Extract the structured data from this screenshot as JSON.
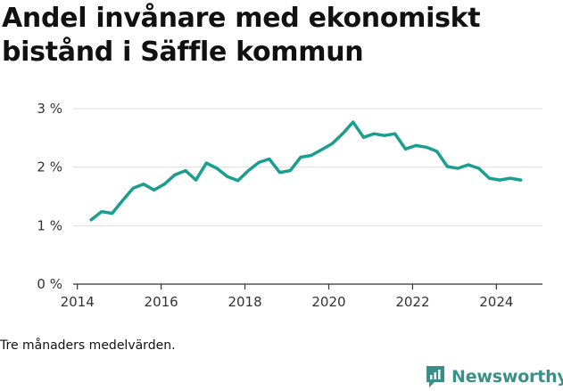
{
  "title": "Andel invånare med ekonomiskt bistånd i Säffle kommun",
  "note": "Tre månaders medelvärden.",
  "brand": {
    "name": "Newsworthy"
  },
  "colors": {
    "line": "#1a9e8f",
    "grid": "#dddddd",
    "axis": "#333333",
    "brand": "#3a9088"
  },
  "chart_data": {
    "type": "line",
    "title": "Andel invånare med ekonomiskt bistånd i Säffle kommun",
    "xlabel": "",
    "ylabel": "",
    "xlim": [
      2013.9,
      2025.1
    ],
    "ylim": [
      0,
      3
    ],
    "x_ticks": [
      2014,
      2016,
      2018,
      2020,
      2022,
      2024
    ],
    "x_tick_labels": [
      "2014",
      "2016",
      "2018",
      "2020",
      "2022",
      "2024"
    ],
    "y_ticks": [
      0,
      1,
      2,
      3
    ],
    "y_tick_labels": [
      "0 %",
      "1 %",
      "2 %",
      "3 %"
    ],
    "grid": true,
    "series": [
      {
        "x": [
          2014.33,
          2014.58,
          2014.83,
          2015.08,
          2015.33,
          2015.58,
          2015.83,
          2016.08,
          2016.33,
          2016.58,
          2016.83,
          2017.08,
          2017.33,
          2017.58,
          2017.83,
          2018.08,
          2018.33,
          2018.58,
          2018.83,
          2019.08,
          2019.33,
          2019.58,
          2019.83,
          2020.08,
          2020.33,
          2020.58,
          2020.83,
          2021.08,
          2021.33,
          2021.58,
          2021.83,
          2022.08,
          2022.33,
          2022.58,
          2022.83,
          2023.08,
          2023.33,
          2023.58,
          2023.83,
          2024.08,
          2024.33,
          2024.58
        ],
        "values": [
          1.1,
          1.24,
          1.21,
          1.43,
          1.64,
          1.71,
          1.61,
          1.71,
          1.87,
          1.94,
          1.78,
          2.07,
          1.98,
          1.84,
          1.77,
          1.94,
          2.08,
          2.14,
          1.91,
          1.94,
          2.17,
          2.2,
          2.3,
          2.4,
          2.57,
          2.77,
          2.51,
          2.57,
          2.54,
          2.57,
          2.31,
          2.37,
          2.34,
          2.27,
          2.01,
          1.98,
          2.04,
          1.98,
          1.81,
          1.78,
          1.81,
          1.78
        ]
      }
    ]
  }
}
